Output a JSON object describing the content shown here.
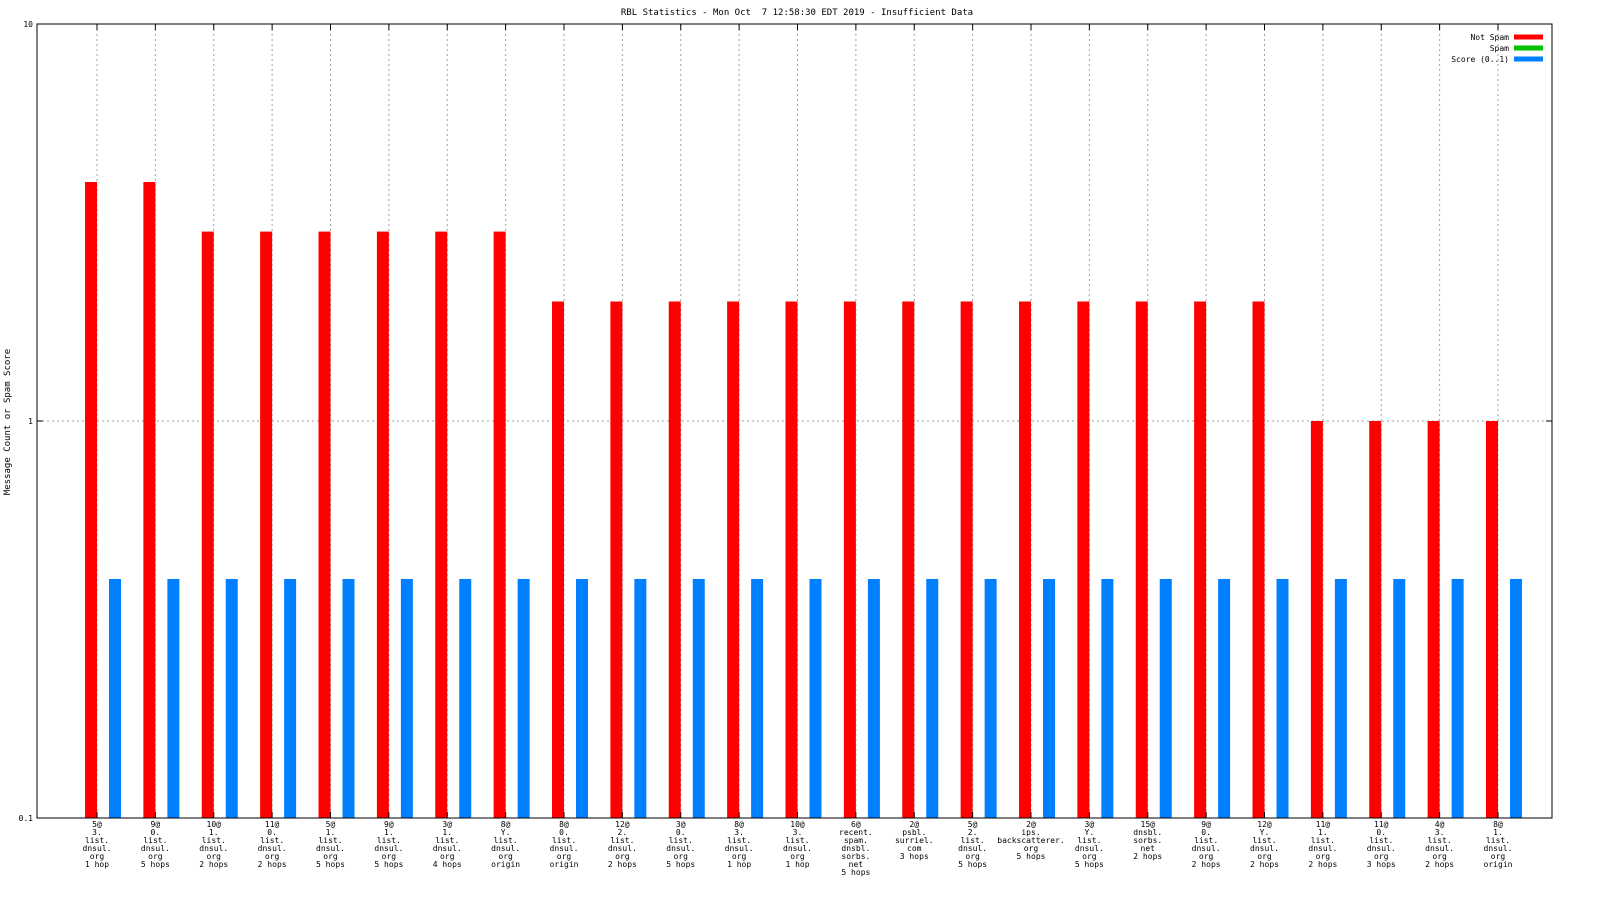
{
  "chart_data": {
    "type": "bar",
    "title": "RBL Statistics - Mon Oct  7 12:58:30 EDT 2019 - Insufficient Data",
    "ylabel": "Message Count or Spam Score",
    "xlabel": "",
    "yscale": "log",
    "ylim": [
      0.1,
      10
    ],
    "yticks": [
      "0.1",
      "1",
      "10"
    ],
    "legend_position": "top-right",
    "grid": true,
    "categories": [
      [
        "5@",
        "3.",
        "list.",
        "dnsul.",
        "org",
        "1 hop"
      ],
      [
        "9@",
        "0.",
        "list.",
        "dnsul.",
        "org",
        "5 hops"
      ],
      [
        "10@",
        "1.",
        "list.",
        "dnsul.",
        "org",
        "2 hops"
      ],
      [
        "11@",
        "0.",
        "list.",
        "dnsul.",
        "org",
        "2 hops"
      ],
      [
        "5@",
        "1.",
        "list.",
        "dnsul.",
        "org",
        "5 hops"
      ],
      [
        "9@",
        "1.",
        "list.",
        "dnsul.",
        "org",
        "5 hops"
      ],
      [
        "3@",
        "1.",
        "list.",
        "dnsul.",
        "org",
        "4 hops"
      ],
      [
        "8@",
        "Y.",
        "list.",
        "dnsul.",
        "org",
        "origin"
      ],
      [
        "8@",
        "0.",
        "list.",
        "dnsul.",
        "org",
        "origin"
      ],
      [
        "12@",
        "2.",
        "list.",
        "dnsul.",
        "org",
        "2 hops"
      ],
      [
        "3@",
        "0.",
        "list.",
        "dnsul.",
        "org",
        "5 hops"
      ],
      [
        "8@",
        "3.",
        "list.",
        "dnsul.",
        "org",
        "1 hop"
      ],
      [
        "10@",
        "3.",
        "list.",
        "dnsul.",
        "org",
        "1 hop"
      ],
      [
        "6@",
        "recent.",
        "spam.",
        "dnsbl.",
        "sorbs.",
        "net",
        "5 hops"
      ],
      [
        "2@",
        "psbl.",
        "surriel.",
        "com",
        "3 hops"
      ],
      [
        "5@",
        "2.",
        "list.",
        "dnsul.",
        "org",
        "5 hops"
      ],
      [
        "2@",
        "ips.",
        "backscatterer.",
        "org",
        "5 hops"
      ],
      [
        "3@",
        "Y.",
        "list.",
        "dnsul.",
        "org",
        "5 hops"
      ],
      [
        "15@",
        "dnsbl.",
        "sorbs.",
        "net",
        "2 hops"
      ],
      [
        "9@",
        "0.",
        "list.",
        "dnsul.",
        "org",
        "2 hops"
      ],
      [
        "12@",
        "Y.",
        "list.",
        "dnsul.",
        "org",
        "2 hops"
      ],
      [
        "11@",
        "1.",
        "list.",
        "dnsul.",
        "org",
        "2 hops"
      ],
      [
        "11@",
        "0.",
        "list.",
        "dnsul.",
        "org",
        "3 hops"
      ],
      [
        "4@",
        "3.",
        "list.",
        "dnsul.",
        "org",
        "2 hops"
      ],
      [
        "8@",
        "1.",
        "list.",
        "dnsul.",
        "org",
        "origin"
      ]
    ],
    "series": [
      {
        "name": "Not Spam",
        "color": "#ff0000",
        "values": [
          4,
          4,
          3,
          3,
          3,
          3,
          3,
          3,
          2,
          2,
          2,
          2,
          2,
          2,
          2,
          2,
          2,
          2,
          2,
          2,
          2,
          1,
          1,
          1,
          1
        ]
      },
      {
        "name": "Spam",
        "color": "#00c000",
        "values": [
          0,
          0,
          0,
          0,
          0,
          0,
          0,
          0,
          0,
          0,
          0,
          0,
          0,
          0,
          0,
          0,
          0,
          0,
          0,
          0,
          0,
          0,
          0,
          0,
          0
        ]
      },
      {
        "name": "Score (0..1)",
        "color": "#0080ff",
        "values": [
          0.4,
          0.4,
          0.4,
          0.4,
          0.4,
          0.4,
          0.4,
          0.4,
          0.4,
          0.4,
          0.4,
          0.4,
          0.4,
          0.4,
          0.4,
          0.4,
          0.4,
          0.4,
          0.4,
          0.4,
          0.4,
          0.4,
          0.4,
          0.4,
          0.4
        ]
      }
    ]
  }
}
